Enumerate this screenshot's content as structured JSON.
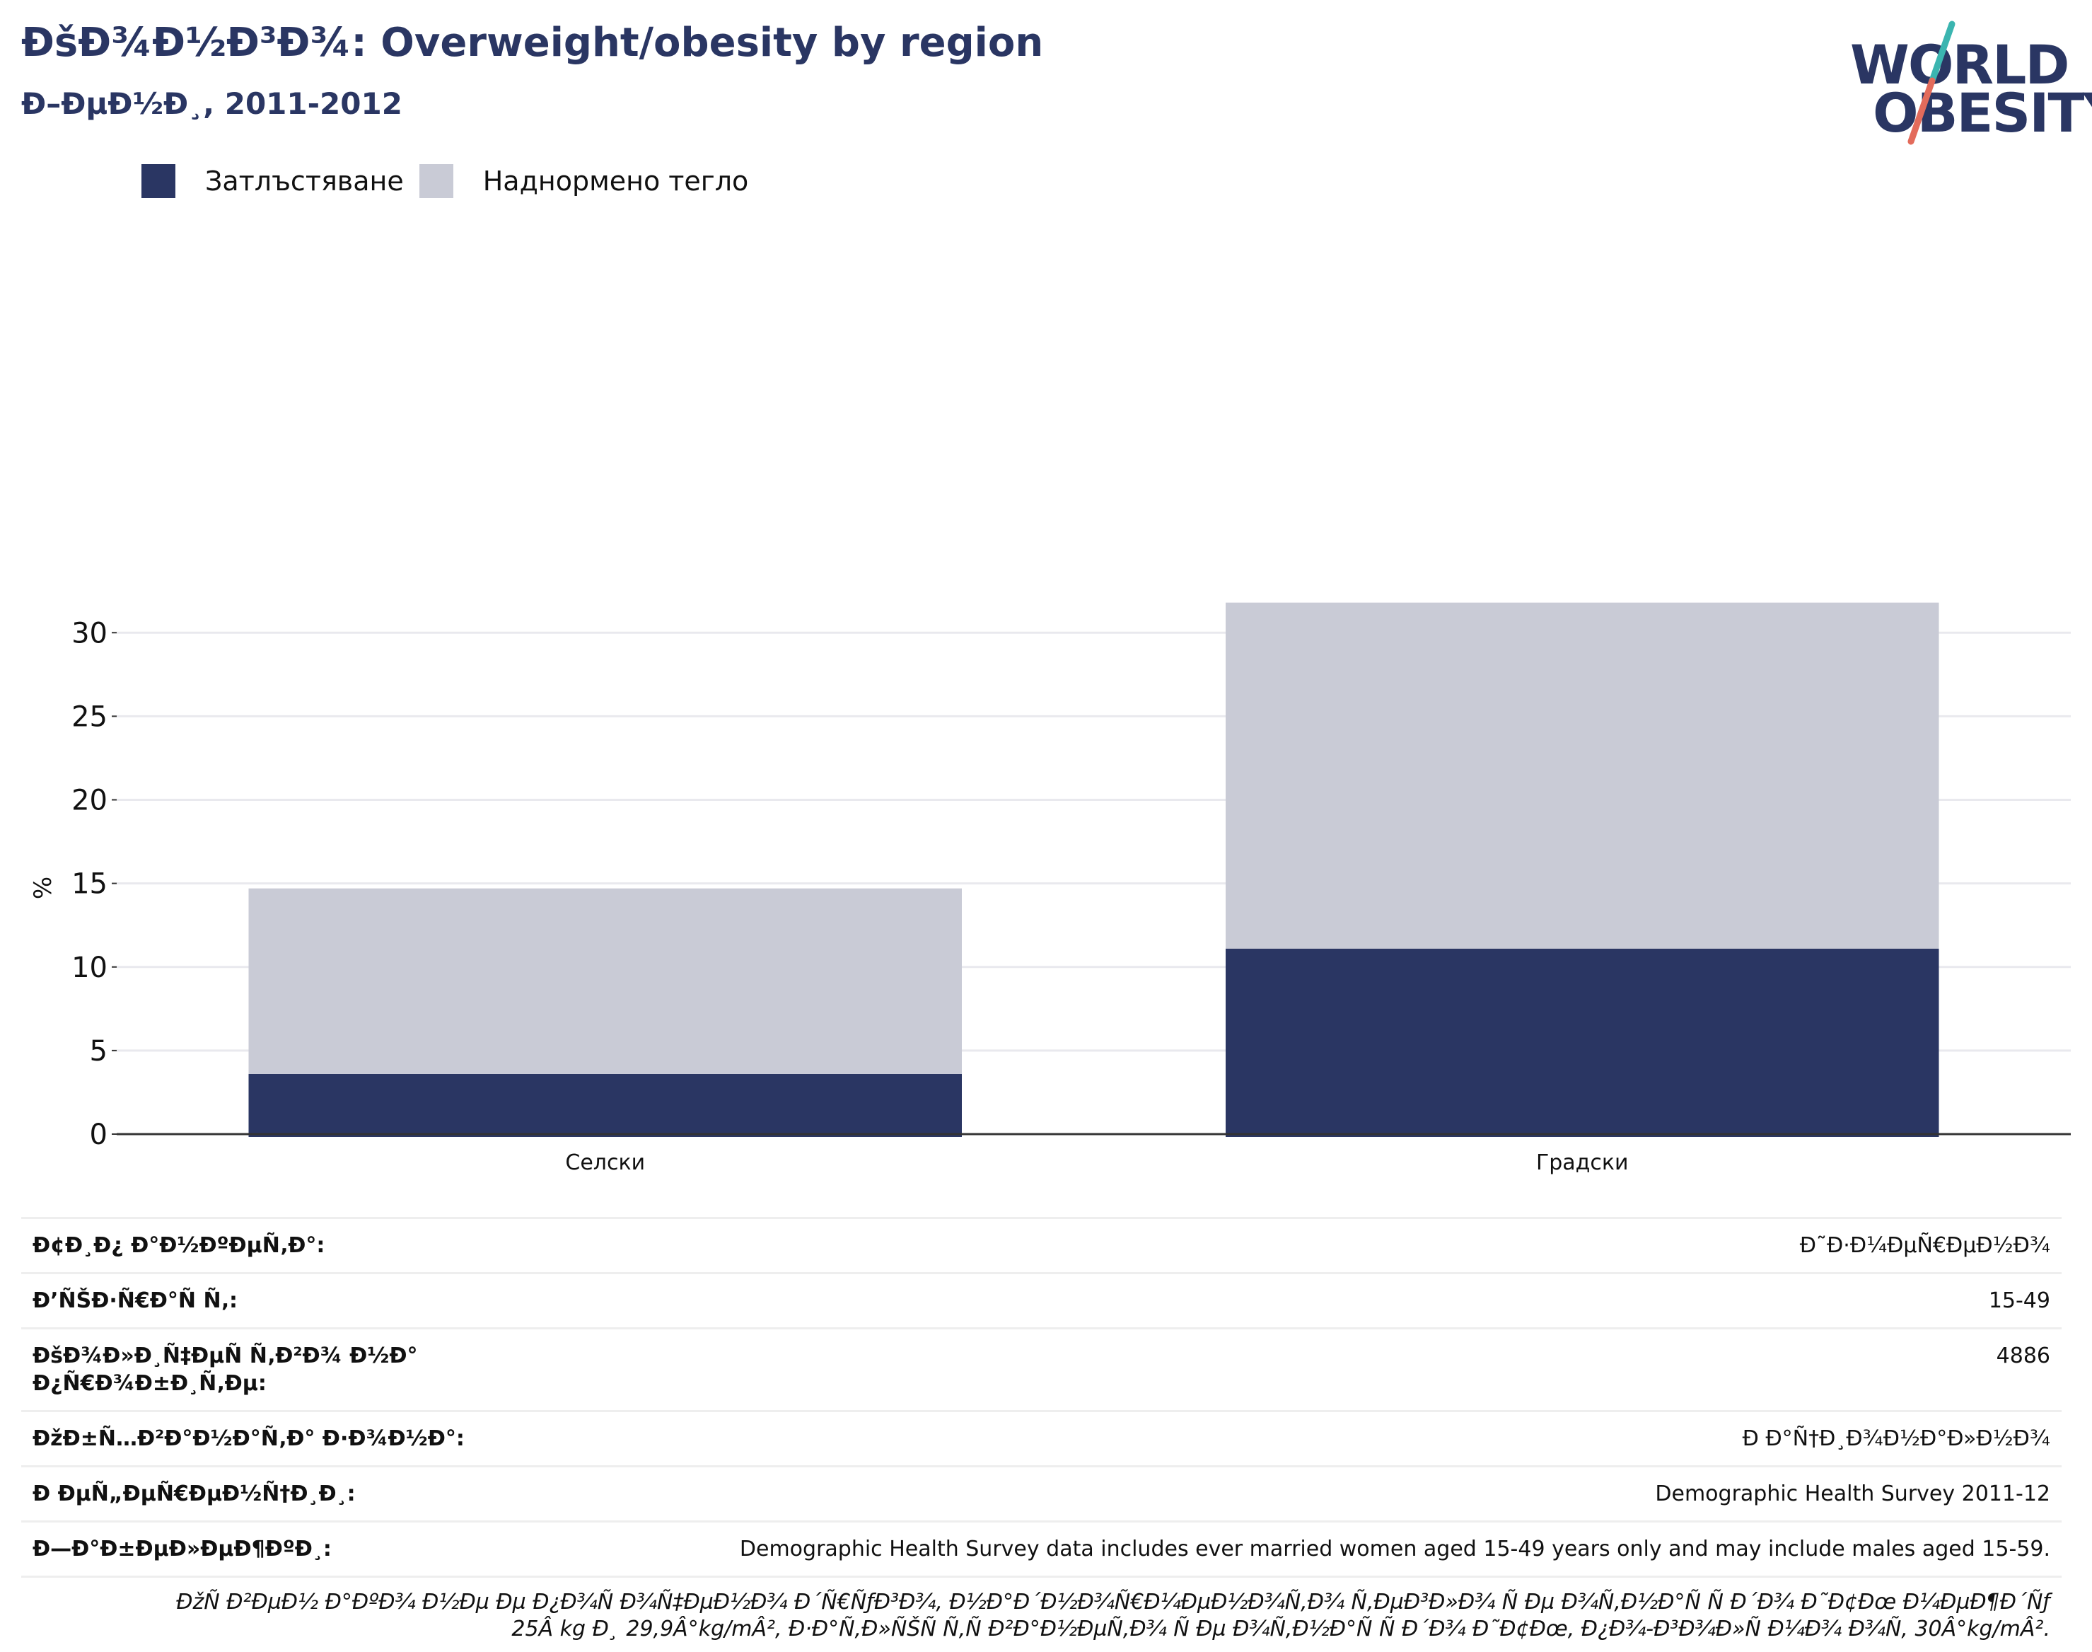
{
  "header": {
    "title": "ĐšĐ¾Đ½Đ³Đ¾: Overweight/obesity by region",
    "subtitle": "Đ–ĐµĐ½Đ¸, 2011-2012"
  },
  "logo": {
    "line1": "WORLD",
    "line2": "OBESITY",
    "colors": {
      "text": "#2a3663",
      "slash_top": "#3bb5b0",
      "slash_bottom": "#e36b5b"
    }
  },
  "legend": [
    {
      "label": "Затлъстяване",
      "color": "#2a3663"
    },
    {
      "label": "Наднормено тегло",
      "color": "#c9cbd6"
    }
  ],
  "chart_data": {
    "type": "bar",
    "stacked": true,
    "categories": [
      "Селски",
      "Градски"
    ],
    "series": [
      {
        "name": "Затлъстяване",
        "color": "#2a3663",
        "values": [
          3.6,
          11.1
        ]
      },
      {
        "name": "Наднормено тегло",
        "color": "#c9cbd6",
        "values": [
          11.1,
          20.7
        ]
      }
    ],
    "ylabel": "%",
    "ylim": [
      0,
      32
    ],
    "yticks": [
      0,
      5,
      10,
      15,
      20,
      25,
      30
    ],
    "grid": true,
    "legend_position": "top-left"
  },
  "meta": [
    {
      "label": "Đ¢Đ¸Đ¿ Đ°Đ½ĐºĐµÑ‚Đ°:",
      "value": "Đ˜Đ·Đ¼ĐµÑ€ĐµĐ½Đ¾"
    },
    {
      "label": "Đ’ÑŠĐ·Ñ€Đ°Ñ Ñ‚:",
      "value": "15-49"
    },
    {
      "label": "ĐšĐ¾Đ»Đ¸Ñ‡ĐµÑ Ñ‚Đ²Đ¾ Đ½Đ° Đ¿Ñ€Đ¾Đ±Đ¸Ñ‚Đµ:",
      "value": "4886"
    },
    {
      "label": "ĐžĐ±Ñ…Đ²Đ°Đ½Đ°Ñ‚Đ° Đ·Đ¾Đ½Đ°:",
      "value": "Đ Đ°Ñ†Đ¸Đ¾Đ½Đ°Đ»Đ½Đ¾"
    },
    {
      "label": "Đ ĐµÑ„ĐµÑ€ĐµĐ½Ñ†Đ¸Đ¸:",
      "value": "Demographic Health Survey 2011-12"
    },
    {
      "label": "Đ—Đ°Đ±ĐµĐ»ĐµĐ¶ĐºĐ¸:",
      "value": "Demographic Health Survey data includes ever married women aged 15-49 years only and may include males aged 15-59."
    }
  ],
  "footnote": {
    "line1": "ĐžÑ Đ²ĐµĐ½ Đ°ĐºĐ¾ Đ½Đµ Đµ Đ¿Đ¾Ñ Đ¾Ñ‡ĐµĐ½Đ¾ Đ´Ñ€ÑƒĐ³Đ¾, Đ½Đ°Đ´Đ½Đ¾Ñ€Đ¼ĐµĐ½Đ¾Ñ‚Đ¾ Ñ‚ĐµĐ³Đ»Đ¾ Ñ Đµ Đ¾Ñ‚Đ½Đ°Ñ Ñ  Đ´Đ¾ Đ˜Đ¢Đœ Đ¼ĐµĐ¶Đ´Ñƒ",
    "line2": "25Â kg Đ¸ 29,9Â°kg/mÂ², Đ·Đ°Ñ‚Đ»ÑŠÑ Ñ‚Ñ Đ²Đ°Đ½ĐµÑ‚Đ¾ Ñ Đµ Đ¾Ñ‚Đ½Đ°Ñ Ñ  Đ´Đ¾ Đ˜Đ¢Đœ, Đ¿Đ¾-Đ³Đ¾Đ»Ñ Đ¼Đ¾ Đ¾Ñ‚ 30Â°kg/mÂ²."
  }
}
